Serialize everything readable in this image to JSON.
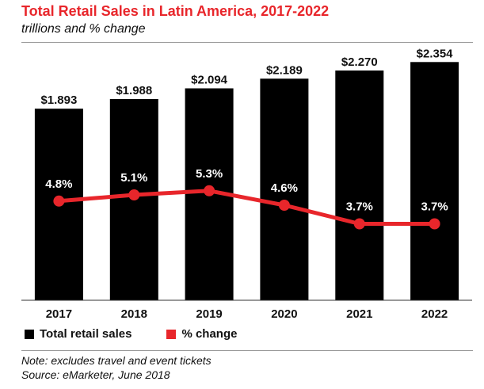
{
  "chart_data": {
    "type": "bar",
    "title": "Total Retail Sales in Latin America, 2017-2022",
    "subtitle": "trillions and % change",
    "categories": [
      "2017",
      "2018",
      "2019",
      "2020",
      "2021",
      "2022"
    ],
    "series": [
      {
        "name": "Total retail sales",
        "type": "bar",
        "values": [
          1.893,
          1.988,
          2.094,
          2.189,
          2.27,
          2.354
        ],
        "labels": [
          "$1.893",
          "$1.988",
          "$2.094",
          "$2.189",
          "$2.270",
          "$2.354"
        ],
        "color": "#000000"
      },
      {
        "name": "% change",
        "type": "line",
        "values": [
          4.8,
          5.1,
          5.3,
          4.6,
          3.7,
          3.7
        ],
        "labels": [
          "4.8%",
          "5.1%",
          "5.3%",
          "4.6%",
          "3.7%",
          "3.7%"
        ],
        "color": "#e8262b"
      }
    ],
    "xlabel": "",
    "ylabel": "",
    "ylim": [
      0,
      2.45
    ],
    "pct_ylim": [
      0,
      12
    ],
    "grid": false,
    "legend_position": "bottom-left"
  },
  "legend": {
    "sales_label": "Total retail sales",
    "pct_label": "% change"
  },
  "note": "Note: excludes travel and event tickets",
  "source": "Source: eMarketer, June 2018"
}
